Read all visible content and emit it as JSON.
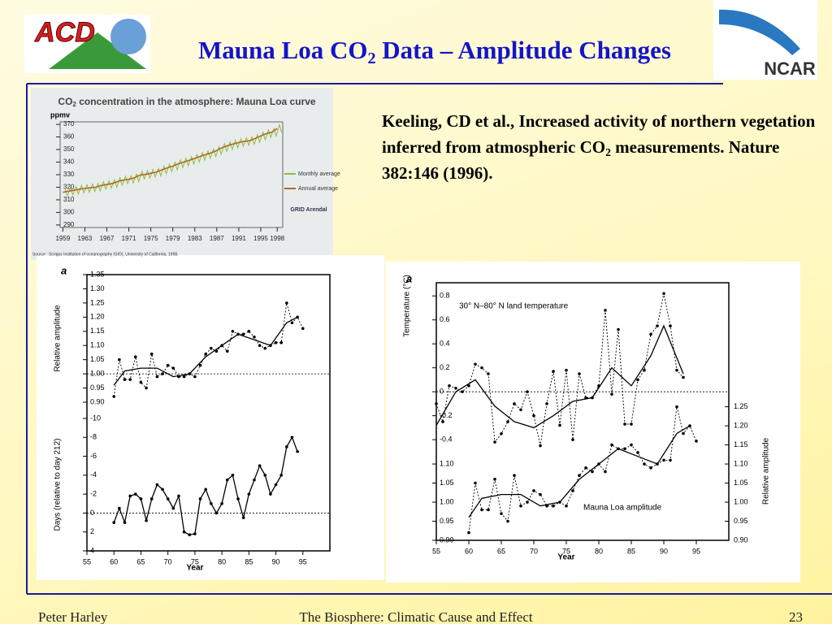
{
  "header": {
    "title": "Mauna Loa CO",
    "title_subscript": "2",
    "title_rest": " Data – Amplitude Changes",
    "logo_left": "ACD",
    "logo_right": "NCAR"
  },
  "citation": {
    "text": "Keeling, CD et al., Increased activity of northern vegetation inferred from atmospheric CO",
    "subscript": "2",
    "rest": " measurements. Nature 382:146 (1996)."
  },
  "footer": {
    "author": "Peter Harley",
    "title": "The Biosphere: Climatic Cause and Effect",
    "page": "23"
  },
  "chart_data": [
    {
      "type": "line",
      "title": "CO",
      "title_subscript": "2",
      "title_rest": " concentration in the atmosphere: Mauna Loa curve",
      "ylabel": "ppmv",
      "xlim": [
        1958.5,
        1999
      ],
      "xticks": [
        1959,
        1963,
        1967,
        1971,
        1975,
        1979,
        1983,
        1987,
        1991,
        1995,
        1998
      ],
      "ylim": [
        288,
        372
      ],
      "yticks": [
        290,
        300,
        310,
        320,
        330,
        340,
        350,
        360,
        370
      ],
      "series": [
        {
          "name": "Monthly average",
          "color": "#8cbf3f",
          "x": [
            1959.4,
            1959.8,
            1960.4,
            1960.8,
            1961.4,
            1961.8,
            1962.4,
            1962.8,
            1963.4,
            1963.8,
            1964.4,
            1964.8,
            1965.4,
            1965.8,
            1966.4,
            1966.8,
            1967.4,
            1967.8,
            1968.4,
            1968.8,
            1969.4,
            1969.8,
            1970.4,
            1970.8,
            1971.4,
            1971.8,
            1972.4,
            1972.8,
            1973.4,
            1973.8,
            1974.4,
            1974.8,
            1975.4,
            1975.8,
            1976.4,
            1976.8,
            1977.4,
            1977.8,
            1978.4,
            1978.8,
            1979.4,
            1979.8,
            1980.4,
            1980.8,
            1981.4,
            1981.8,
            1982.4,
            1982.8,
            1983.4,
            1983.8,
            1984.4,
            1984.8,
            1985.4,
            1985.8,
            1986.4,
            1986.8,
            1987.4,
            1987.8,
            1988.4,
            1988.8,
            1989.4,
            1989.8,
            1990.4,
            1990.8,
            1991.4,
            1991.8,
            1992.4,
            1992.8,
            1993.4,
            1993.8,
            1994.4,
            1994.8,
            1995.4,
            1995.8,
            1996.4,
            1996.8,
            1997.4,
            1997.8,
            1998.4,
            1998.8
          ],
          "values": [
            319.0,
            313.0,
            319.9,
            313.9,
            320.6,
            314.6,
            321.5,
            315.5,
            322.0,
            316.0,
            322.6,
            316.6,
            323.0,
            317.0,
            324.4,
            318.4,
            325.2,
            319.2,
            326.0,
            320.0,
            327.6,
            321.6,
            328.7,
            322.7,
            329.3,
            323.3,
            330.5,
            324.5,
            332.7,
            326.7,
            333.2,
            327.2,
            334.1,
            328.1,
            335.0,
            329.0,
            336.8,
            330.8,
            338.4,
            332.4,
            339.8,
            333.8,
            341.7,
            335.7,
            343.1,
            337.1,
            344.4,
            338.4,
            346.0,
            340.0,
            347.6,
            341.6,
            349.0,
            343.0,
            350.4,
            344.4,
            352.2,
            346.2,
            354.6,
            348.6,
            356.1,
            350.1,
            357.4,
            351.4,
            358.6,
            352.6,
            359.4,
            353.4,
            360.1,
            354.1,
            361.8,
            355.8,
            363.8,
            357.8,
            365.6,
            359.6,
            366.7,
            360.7,
            369.7,
            363.7
          ]
        },
        {
          "name": "Annual average",
          "color": "#b5652a",
          "x": [
            1959,
            1960,
            1961,
            1962,
            1963,
            1964,
            1965,
            1966,
            1967,
            1968,
            1969,
            1970,
            1971,
            1972,
            1973,
            1974,
            1975,
            1976,
            1977,
            1978,
            1979,
            1980,
            1981,
            1982,
            1983,
            1984,
            1985,
            1986,
            1987,
            1988,
            1989,
            1990,
            1991,
            1992,
            1993,
            1994,
            1995,
            1996,
            1997,
            1998
          ],
          "values": [
            316.0,
            316.9,
            317.6,
            318.5,
            319.0,
            319.6,
            320.0,
            321.4,
            322.2,
            323.0,
            324.6,
            325.7,
            326.3,
            327.5,
            329.7,
            330.2,
            331.1,
            332.0,
            333.8,
            335.4,
            336.8,
            338.7,
            340.1,
            341.4,
            343.0,
            344.6,
            346.0,
            347.4,
            349.2,
            351.6,
            353.1,
            354.4,
            355.6,
            356.4,
            357.1,
            358.8,
            360.8,
            362.6,
            363.7,
            366.7
          ]
        }
      ],
      "credit": "GRID Arendal",
      "source": "Source : Scripps Institution of oceanography (SIO), University of California, 1998."
    },
    {
      "type": "line",
      "label": "a",
      "xlabel": "Year",
      "xlim": [
        55,
        100
      ],
      "xticks": [
        55,
        60,
        65,
        70,
        75,
        80,
        85,
        90,
        95
      ],
      "panels": [
        {
          "ylabel": "Relative amplitude",
          "ylim": [
            0.9,
            1.35
          ],
          "reference": 1,
          "yticks": [
            {
              "value": 0.9,
              "label": "0.90"
            },
            0.95,
            {
              "value": 1,
              "label": "1.00"
            },
            1.05,
            {
              "value": 1.1,
              "label": "1.10"
            },
            1.15,
            {
              "value": 1.2,
              "label": "1.20"
            },
            1.25,
            {
              "value": 1.3,
              "label": "1.30"
            },
            1.35
          ],
          "series": [
            {
              "style": "dotted",
              "x": [
                60,
                61,
                62,
                63,
                64,
                65,
                66,
                67,
                68,
                69,
                70,
                71,
                72,
                73,
                74,
                75,
                76,
                77,
                78,
                79,
                80,
                81,
                82,
                83,
                84,
                85,
                86,
                87,
                88,
                89,
                90,
                91,
                92,
                93,
                94,
                95
              ],
              "values": [
                0.92,
                1.05,
                0.98,
                0.98,
                1.06,
                0.97,
                0.95,
                1.07,
                0.99,
                1.0,
                1.03,
                1.02,
                0.99,
                0.99,
                1.0,
                0.99,
                1.03,
                1.07,
                1.09,
                1.08,
                1.1,
                1.08,
                1.15,
                1.14,
                1.14,
                1.15,
                1.13,
                1.1,
                1.09,
                1.1,
                1.11,
                1.11,
                1.25,
                1.18,
                1.2,
                1.16
              ]
            },
            {
              "style": "solid",
              "x": [
                60,
                62,
                65,
                68,
                71,
                74,
                77,
                80,
                83,
                86,
                89,
                92,
                94
              ],
              "values": [
                0.96,
                1.01,
                1.02,
                1.02,
                0.99,
                1.0,
                1.06,
                1.1,
                1.14,
                1.12,
                1.1,
                1.18,
                1.2
              ]
            }
          ]
        },
        {
          "ylabel": "Days (relative to day 212)",
          "ylim": [
            4,
            -10
          ],
          "reference": 0,
          "yticks": [
            -10,
            -8,
            -6,
            -4,
            -2,
            0,
            2,
            4
          ],
          "series": [
            {
              "style": "solid",
              "x": [
                60,
                61,
                62,
                63,
                64,
                65,
                66,
                67,
                68,
                69,
                70,
                71,
                72,
                73,
                74,
                75,
                76,
                77,
                78,
                79,
                80,
                81,
                82,
                83,
                84,
                85,
                86,
                87,
                88,
                89,
                90,
                91,
                92,
                93,
                94
              ],
              "values": [
                1,
                -0.5,
                1,
                -1.8,
                -2,
                -1.5,
                0.8,
                -1.5,
                -3,
                -2.5,
                -1.5,
                -0.5,
                -1.8,
                2,
                2.3,
                2.2,
                -1.5,
                -2.5,
                -1,
                0,
                -1,
                -3.5,
                -4,
                -1.5,
                0.5,
                -2,
                -3.5,
                -5,
                -4,
                -2,
                -3,
                -4,
                -7,
                -8,
                -6.5
              ]
            }
          ]
        }
      ]
    },
    {
      "type": "line",
      "label": "a",
      "xlabel": "Year",
      "xlim": [
        55,
        100
      ],
      "xticks": [
        55,
        60,
        65,
        70,
        75,
        80,
        85,
        90,
        95
      ],
      "panels": [
        {
          "ylabel": "Temperature (°C)",
          "annotation": "30° N–80° N land temperature",
          "ylim": [
            -1.24,
            0.91
          ],
          "reference": 0,
          "side": "left",
          "yticks": [
            -0.4,
            -0.2,
            0,
            0.2,
            0.4,
            0.6,
            0.8
          ],
          "series": [
            {
              "style": "dotted",
              "x": [
                55,
                56,
                57,
                58,
                59,
                60,
                61,
                62,
                63,
                64,
                65,
                66,
                67,
                68,
                69,
                70,
                71,
                72,
                73,
                74,
                75,
                76,
                77,
                78,
                79,
                80,
                81,
                82,
                83,
                84,
                85,
                86,
                87,
                88,
                89,
                90,
                91,
                92,
                93
              ],
              "values": [
                -0.1,
                -0.25,
                0.05,
                0.03,
                0,
                0.05,
                0.23,
                0.2,
                0.15,
                -0.42,
                -0.35,
                -0.25,
                -0.1,
                -0.15,
                0,
                -0.2,
                -0.45,
                -0.1,
                0.17,
                -0.28,
                0.18,
                -0.4,
                0.15,
                -0.05,
                -0.05,
                0.05,
                0.68,
                -0.02,
                0.52,
                -0.27,
                -0.27,
                0.1,
                0.18,
                0.48,
                0.55,
                0.82,
                0.55,
                0.18,
                0.12
              ]
            },
            {
              "style": "solid",
              "x": [
                55,
                58,
                61,
                64,
                67,
                70,
                73,
                76,
                79,
                82,
                85,
                88,
                90,
                93
              ],
              "values": [
                -0.28,
                0,
                0.1,
                -0.12,
                -0.25,
                -0.3,
                -0.2,
                -0.08,
                -0.05,
                0.2,
                0.05,
                0.3,
                0.55,
                0.15
              ]
            }
          ]
        },
        {
          "ylabel": "Relative amplitude",
          "annotation": "Mauna Loa amplitude",
          "ylim": [
            0.9,
            1.575
          ],
          "side": "right",
          "yticks": [
            {
              "value": 0.9,
              "label": "0.90"
            },
            0.95,
            {
              "value": 1,
              "label": "1.00"
            },
            1.05,
            {
              "value": 1.1,
              "label": "1.10"
            },
            1.15,
            {
              "value": 1.2,
              "label": "1.20"
            },
            1.25
          ],
          "yticks_left": [
            {
              "value": 0.9,
              "label": "0.90"
            },
            0.95,
            {
              "value": 1,
              "label": "1.00"
            },
            1.05,
            {
              "value": 1.1,
              "label": "1.10"
            }
          ],
          "series": [
            {
              "style": "dotted",
              "x": [
                60,
                61,
                62,
                63,
                64,
                65,
                66,
                67,
                68,
                69,
                70,
                71,
                72,
                73,
                74,
                75,
                76,
                77,
                78,
                79,
                80,
                81,
                82,
                83,
                84,
                85,
                86,
                87,
                88,
                89,
                90,
                91,
                92,
                93,
                94,
                95
              ],
              "values": [
                0.92,
                1.05,
                0.98,
                0.98,
                1.06,
                0.97,
                0.95,
                1.07,
                0.99,
                1.0,
                1.03,
                1.02,
                0.99,
                0.99,
                1.0,
                0.99,
                1.03,
                1.07,
                1.09,
                1.08,
                1.1,
                1.08,
                1.15,
                1.14,
                1.14,
                1.15,
                1.13,
                1.1,
                1.09,
                1.1,
                1.11,
                1.11,
                1.25,
                1.18,
                1.2,
                1.16
              ]
            },
            {
              "style": "solid",
              "x": [
                60,
                62,
                65,
                68,
                71,
                74,
                77,
                80,
                83,
                86,
                89,
                92,
                94
              ],
              "values": [
                0.96,
                1.01,
                1.02,
                1.02,
                0.99,
                1.0,
                1.06,
                1.1,
                1.14,
                1.12,
                1.1,
                1.18,
                1.2
              ]
            }
          ]
        }
      ]
    }
  ]
}
